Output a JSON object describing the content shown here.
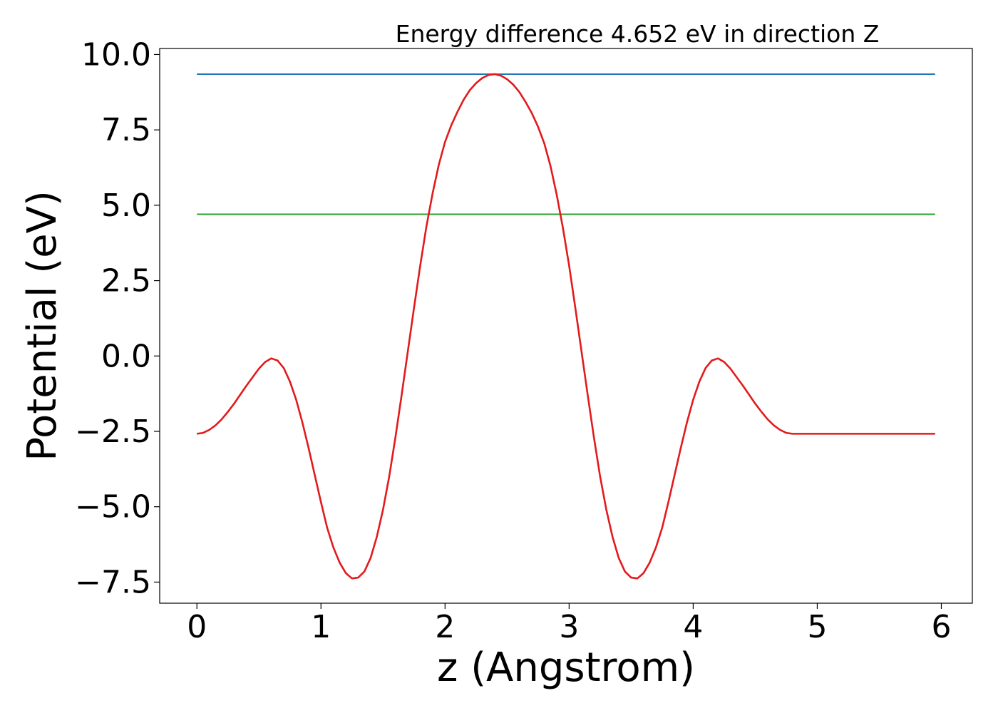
{
  "chart_data": {
    "type": "line",
    "title": "Energy difference 4.652 eV in direction Z",
    "xlabel": "z (Angstrom)",
    "ylabel": "Potential (eV)",
    "xlim": [
      -0.3,
      6.25
    ],
    "ylim": [
      -8.2,
      10.2
    ],
    "grid": false,
    "x_ticks": [
      0,
      1,
      2,
      3,
      4,
      5,
      6
    ],
    "x_tick_labels": [
      "0",
      "1",
      "2",
      "3",
      "4",
      "5",
      "6"
    ],
    "y_ticks": [
      -7.5,
      -5.0,
      -2.5,
      0.0,
      2.5,
      5.0,
      7.5,
      10.0
    ],
    "y_tick_labels": [
      "−7.5",
      "−5.0",
      "−2.5",
      "0.0",
      "2.5",
      "5.0",
      "7.5",
      "10.0"
    ],
    "series": [
      {
        "color": "#1f77b4",
        "x": [
          0,
          5.95
        ],
        "y": [
          9.35,
          9.35
        ]
      },
      {
        "color": "#2ca02c",
        "x": [
          0,
          5.95
        ],
        "y": [
          4.7,
          4.7
        ]
      },
      {
        "color": "#e31a1c",
        "x": [
          0,
          0.05,
          0.1,
          0.15,
          0.2,
          0.25,
          0.3,
          0.35,
          0.4,
          0.45,
          0.5,
          0.55,
          0.6,
          0.65,
          0.7,
          0.75,
          0.8,
          0.85,
          0.9,
          0.95,
          1.0,
          1.05,
          1.1,
          1.15,
          1.2,
          1.25,
          1.3,
          1.35,
          1.4,
          1.45,
          1.5,
          1.55,
          1.6,
          1.65,
          1.7,
          1.75,
          1.8,
          1.85,
          1.9,
          1.95,
          2.0,
          2.05,
          2.1,
          2.15,
          2.2,
          2.25,
          2.3,
          2.35,
          2.4,
          2.45,
          2.5,
          2.55,
          2.6,
          2.65,
          2.7,
          2.75,
          2.8,
          2.85,
          2.9,
          2.95,
          3.0,
          3.05,
          3.1,
          3.15,
          3.2,
          3.25,
          3.3,
          3.35,
          3.4,
          3.45,
          3.5,
          3.55,
          3.6,
          3.65,
          3.7,
          3.75,
          3.8,
          3.85,
          3.9,
          3.95,
          4.0,
          4.05,
          4.1,
          4.15,
          4.2,
          4.25,
          4.3,
          4.35,
          4.4,
          4.45,
          4.5,
          4.55,
          4.6,
          4.65,
          4.7,
          4.75,
          4.8,
          4.85,
          4.9,
          4.95,
          5.0,
          5.05,
          5.1,
          5.15,
          5.2,
          5.25,
          5.3,
          5.35,
          5.4,
          5.45,
          5.5,
          5.55,
          5.6,
          5.65,
          5.7,
          5.75,
          5.8,
          5.85,
          5.9,
          5.95
        ],
        "y": [
          -2.58,
          -2.55,
          -2.45,
          -2.3,
          -2.1,
          -1.85,
          -1.58,
          -1.28,
          -0.98,
          -0.7,
          -0.42,
          -0.2,
          -0.08,
          -0.15,
          -0.4,
          -0.85,
          -1.45,
          -2.2,
          -3.05,
          -3.95,
          -4.85,
          -5.7,
          -6.35,
          -6.85,
          -7.2,
          -7.38,
          -7.35,
          -7.15,
          -6.7,
          -6.0,
          -5.1,
          -4.0,
          -2.7,
          -1.3,
          0.15,
          1.6,
          3.0,
          4.3,
          5.4,
          6.35,
          7.1,
          7.65,
          8.1,
          8.5,
          8.82,
          9.05,
          9.22,
          9.32,
          9.35,
          9.3,
          9.18,
          9.0,
          8.75,
          8.42,
          8.05,
          7.6,
          7.05,
          6.3,
          5.35,
          4.25,
          3.0,
          1.6,
          0.15,
          -1.3,
          -2.7,
          -4.0,
          -5.1,
          -6.0,
          -6.7,
          -7.15,
          -7.35,
          -7.38,
          -7.2,
          -6.85,
          -6.35,
          -5.7,
          -4.85,
          -3.95,
          -3.05,
          -2.2,
          -1.45,
          -0.85,
          -0.4,
          -0.15,
          -0.08,
          -0.2,
          -0.42,
          -0.7,
          -0.98,
          -1.28,
          -1.58,
          -1.85,
          -2.1,
          -2.3,
          -2.45,
          -2.55,
          -2.58,
          -2.58,
          -2.58,
          -2.58,
          -2.58,
          -2.58,
          -2.58,
          -2.58,
          -2.58,
          -2.58,
          -2.58,
          -2.58,
          -2.58,
          -2.58,
          -2.58,
          -2.58,
          -2.58,
          -2.58,
          -2.58,
          -2.58,
          -2.58,
          -2.58,
          -2.58,
          -2.58
        ]
      }
    ]
  }
}
